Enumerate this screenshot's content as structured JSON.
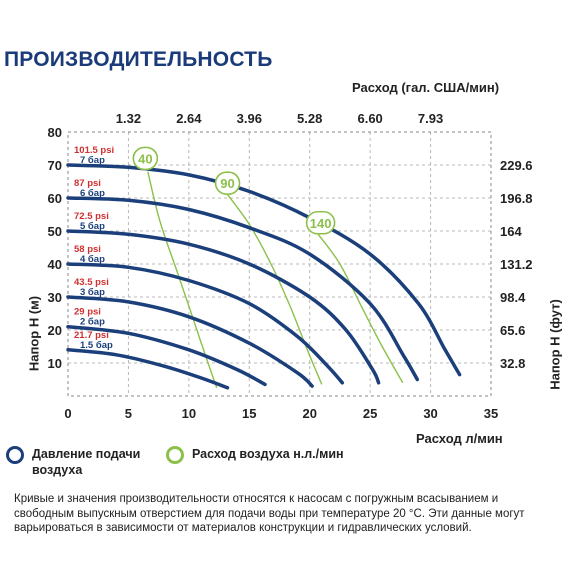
{
  "title": "ПРОИЗВОДИТЕЛЬНОСТЬ",
  "legend": {
    "pressure_label": "Давление подачи\nвоздуха",
    "air_label": "Расход воздуха н.л./мин"
  },
  "footnote": "Кривые и значения производительности относятся к насосам с погружным всасыванием и свободным выпускным отверстием для подачи воды при температуре 20 °C. Эти данные могут варьироваться в зависимости от материалов конструкции и гидравлических условий.",
  "colors": {
    "pressure_curve": "#1b3f7a",
    "air_curve": "#8cc04b",
    "psi_text": "#d03030",
    "bar_text": "#1b3f7a",
    "grid": "#b8b8b8"
  },
  "chart_data": {
    "type": "line",
    "xlabel": "Расход л/мин",
    "ylabel": "Напор H (м)",
    "x2label": "Расход (гал. США/мин)",
    "y2label": "Напор H (фут)",
    "xlim": [
      0,
      35
    ],
    "ylim": [
      0,
      80
    ],
    "x_ticks": [
      0,
      5,
      10,
      15,
      20,
      25,
      30,
      35
    ],
    "y_ticks": [
      10,
      20,
      30,
      40,
      50,
      60,
      70,
      80
    ],
    "x2_ticks": [
      {
        "x": 5,
        "label": "1.32"
      },
      {
        "x": 10,
        "label": "2.64"
      },
      {
        "x": 15,
        "label": "3.96"
      },
      {
        "x": 20,
        "label": "5.28"
      },
      {
        "x": 25,
        "label": "6.60"
      },
      {
        "x": 30,
        "label": "7.93"
      }
    ],
    "y2_ticks": [
      {
        "y": 10,
        "label": "32.8"
      },
      {
        "y": 20,
        "label": "65.6"
      },
      {
        "y": 30,
        "label": "98.4"
      },
      {
        "y": 40,
        "label": "131.2"
      },
      {
        "y": 50,
        "label": "164"
      },
      {
        "y": 60,
        "label": "196.8"
      },
      {
        "y": 70,
        "label": "229.6"
      }
    ],
    "grid": true,
    "pressure_series": [
      {
        "psi": "21.7 psi",
        "bar": "1.5 бар",
        "points": [
          [
            0,
            14
          ],
          [
            4,
            12.5
          ],
          [
            8,
            9
          ],
          [
            11,
            5.5
          ],
          [
            13.2,
            2.5
          ]
        ]
      },
      {
        "psi": "29 psi",
        "bar": "2 бар",
        "points": [
          [
            0,
            21
          ],
          [
            5,
            19
          ],
          [
            10,
            14
          ],
          [
            14,
            8
          ],
          [
            16.3,
            3.5
          ]
        ]
      },
      {
        "psi": "43.5 psi",
        "bar": "3 бар",
        "points": [
          [
            0,
            30
          ],
          [
            5,
            28.5
          ],
          [
            10,
            24
          ],
          [
            15,
            16
          ],
          [
            19,
            7
          ],
          [
            20.2,
            3
          ]
        ]
      },
      {
        "psi": "58 psi",
        "bar": "4 бар",
        "points": [
          [
            0,
            40
          ],
          [
            5,
            39
          ],
          [
            10,
            35
          ],
          [
            15,
            28
          ],
          [
            19,
            18
          ],
          [
            21.5,
            9
          ],
          [
            22.7,
            4
          ]
        ]
      },
      {
        "psi": "72.5 psi",
        "bar": "5 бар",
        "points": [
          [
            0,
            50
          ],
          [
            5,
            49
          ],
          [
            10,
            46
          ],
          [
            15,
            40
          ],
          [
            20,
            30
          ],
          [
            23,
            20
          ],
          [
            25.2,
            8
          ],
          [
            25.7,
            4
          ]
        ]
      },
      {
        "psi": "87 psi",
        "bar": "6 бар",
        "points": [
          [
            0,
            60
          ],
          [
            5,
            59.3
          ],
          [
            10,
            56.5
          ],
          [
            15,
            51
          ],
          [
            20,
            43
          ],
          [
            25,
            28
          ],
          [
            27.8,
            12
          ],
          [
            28.9,
            5
          ]
        ]
      },
      {
        "psi": "101.5 psi",
        "bar": "7 бар",
        "points": [
          [
            0,
            70
          ],
          [
            5,
            69.3
          ],
          [
            10,
            67
          ],
          [
            15,
            62
          ],
          [
            20,
            54
          ],
          [
            25,
            43
          ],
          [
            29,
            28
          ],
          [
            31.2,
            14
          ],
          [
            32.4,
            6.5
          ]
        ]
      }
    ],
    "air_series": [
      {
        "label": "40",
        "label_at": [
          6.4,
          72
        ],
        "points": [
          [
            6.6,
            68
          ],
          [
            7.6,
            53
          ],
          [
            9,
            38
          ],
          [
            10.3,
            24
          ],
          [
            11.4,
            12
          ],
          [
            12.3,
            2.5
          ]
        ]
      },
      {
        "label": "90",
        "label_at": [
          13.2,
          64.5
        ],
        "points": [
          [
            13,
            62
          ],
          [
            15,
            52
          ],
          [
            16.8,
            40
          ],
          [
            18.4,
            27
          ],
          [
            19.8,
            14
          ],
          [
            21,
            3.5
          ]
        ]
      },
      {
        "label": "140",
        "label_at": [
          20.9,
          52.5
        ],
        "points": [
          [
            20.7,
            49
          ],
          [
            22.5,
            40
          ],
          [
            24.3,
            27
          ],
          [
            26,
            15
          ],
          [
            27.7,
            4
          ]
        ]
      }
    ]
  }
}
